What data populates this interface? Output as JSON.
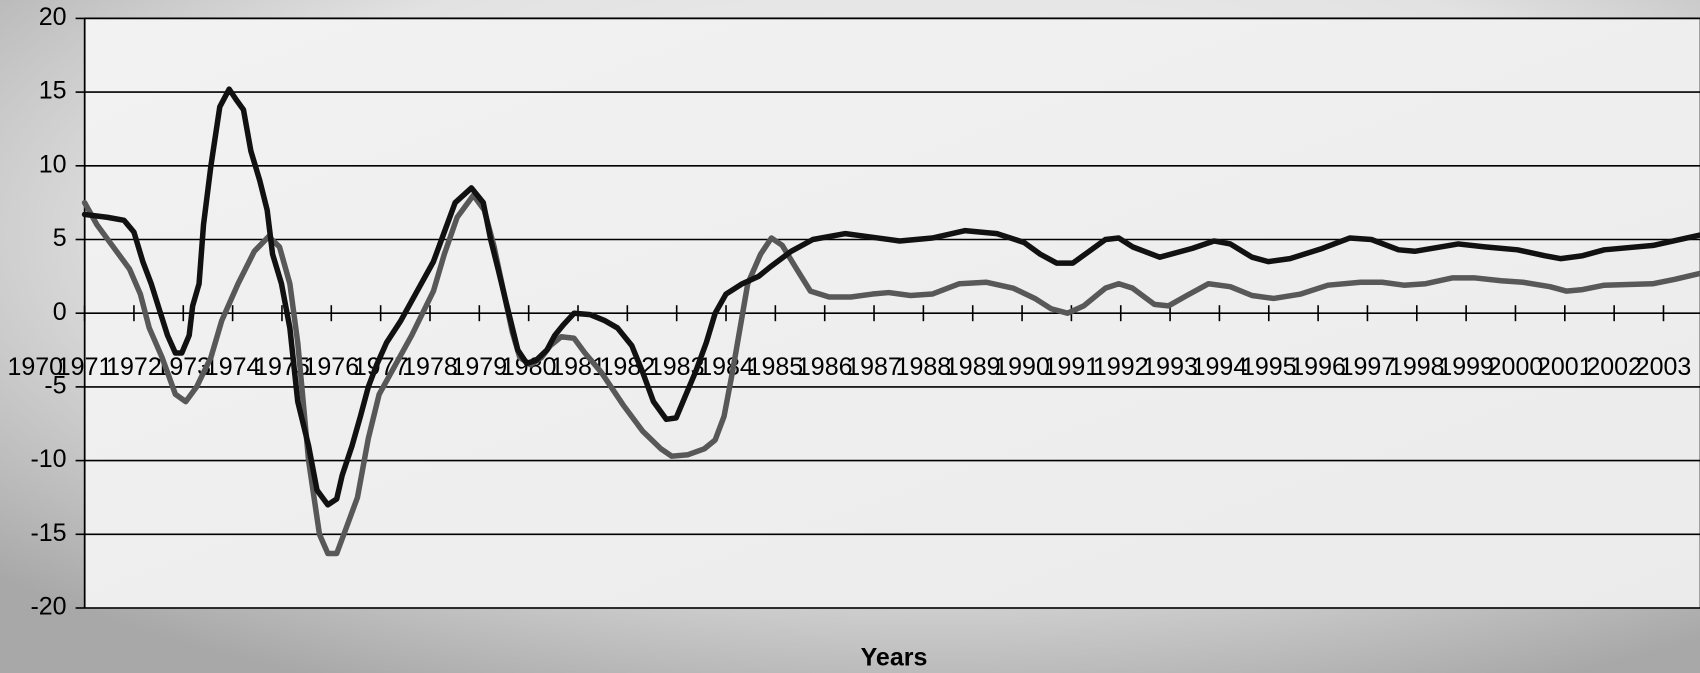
{
  "chart_data": {
    "type": "line",
    "x_label": "Years",
    "xlim": [
      1971,
      2003.74
    ],
    "xticks": [
      1970,
      1971,
      1972,
      1973,
      1974,
      1975,
      1976,
      1977,
      1978,
      1979,
      1980,
      1981,
      1982,
      1983,
      1984,
      1985,
      1986,
      1987,
      1988,
      1989,
      1990,
      1991,
      1992,
      1993,
      1994,
      1995,
      1996,
      1997,
      1998,
      1999,
      2000,
      2001,
      2002,
      2003
    ],
    "ylim": [
      -20,
      20
    ],
    "yticks": [
      -20,
      -15,
      -10,
      -5,
      0,
      5,
      10,
      15,
      20
    ],
    "grid": true,
    "series": [
      {
        "color": "#111111",
        "x": [
          1971.0,
          1971.47,
          1971.8,
          1972.0,
          1972.18,
          1972.35,
          1972.51,
          1972.68,
          1972.84,
          1972.97,
          1973.12,
          1973.19,
          1973.32,
          1973.41,
          1973.56,
          1973.74,
          1973.93,
          1974.07,
          1974.22,
          1974.37,
          1974.55,
          1974.7,
          1974.81,
          1974.99,
          1975.16,
          1975.32,
          1975.54,
          1975.71,
          1975.93,
          1976.11,
          1976.22,
          1976.42,
          1976.59,
          1976.75,
          1976.92,
          1977.12,
          1977.41,
          1977.74,
          1978.07,
          1978.29,
          1978.51,
          1978.84,
          1979.08,
          1979.23,
          1979.38,
          1979.56,
          1979.78,
          1979.96,
          1980.15,
          1980.37,
          1980.53,
          1980.7,
          1980.92,
          1981.25,
          1981.54,
          1981.8,
          1982.09,
          1982.31,
          1982.53,
          1982.79,
          1982.99,
          1983.19,
          1983.38,
          1983.6,
          1983.78,
          1984.0,
          1984.33,
          1984.66,
          1984.92,
          1985.32,
          1985.76,
          1986.42,
          1986.86,
          1987.52,
          1988.18,
          1988.84,
          1989.49,
          1990.04,
          1990.37,
          1990.7,
          1991.03,
          1991.36,
          1991.69,
          1991.96,
          1992.24,
          1992.79,
          1993.45,
          1993.89,
          1994.22,
          1994.66,
          1994.99,
          1995.43,
          1996.09,
          1996.64,
          1997.08,
          1997.63,
          1997.96,
          1998.84,
          1999.38,
          2000.04,
          2000.59,
          2000.92,
          2001.36,
          2001.8,
          2002.79,
          2003.74
        ],
        "values": [
          6.7,
          6.5,
          6.3,
          5.5,
          3.5,
          2,
          0.3,
          -1.5,
          -2.7,
          -2.7,
          -1.5,
          0.5,
          2,
          6,
          10,
          14,
          15.2,
          14.5,
          13.8,
          11,
          9,
          7,
          4,
          2,
          -1,
          -6,
          -9,
          -12,
          -13,
          -12.6,
          -11,
          -9,
          -7,
          -5,
          -3.5,
          -2,
          -0.5,
          1.5,
          3.5,
          5.5,
          7.5,
          8.5,
          7.5,
          5,
          3,
          0.5,
          -2.5,
          -3.4,
          -3.2,
          -2.5,
          -1.5,
          -0.8,
          0,
          -0.1,
          -0.5,
          -1,
          -2.2,
          -4,
          -6,
          -7.2,
          -7.1,
          -5.5,
          -4,
          -2,
          0,
          1.3,
          2,
          2.5,
          3.2,
          4.2,
          5,
          5.4,
          5.2,
          4.9,
          5.1,
          5.6,
          5.4,
          4.8,
          4,
          3.4,
          3.4,
          4.2,
          5,
          5.1,
          4.5,
          3.8,
          4.4,
          4.9,
          4.7,
          3.8,
          3.5,
          3.7,
          4.4,
          5.1,
          5,
          4.3,
          4.2,
          4.7,
          4.5,
          4.3,
          3.9,
          3.7,
          3.9,
          4.3,
          4.6,
          5.3
        ]
      },
      {
        "color": "#585858",
        "x": [
          1971.0,
          1971.25,
          1971.58,
          1971.91,
          1972.13,
          1972.31,
          1972.57,
          1972.84,
          1973.05,
          1973.27,
          1973.56,
          1973.78,
          1974.11,
          1974.44,
          1974.73,
          1974.95,
          1975.16,
          1975.32,
          1975.54,
          1975.76,
          1975.93,
          1976.11,
          1976.31,
          1976.53,
          1976.75,
          1976.97,
          1977.3,
          1977.63,
          1978.07,
          1978.29,
          1978.55,
          1978.88,
          1979.1,
          1979.3,
          1979.49,
          1979.67,
          1979.82,
          1980.04,
          1980.26,
          1980.44,
          1980.66,
          1980.92,
          1981.14,
          1981.47,
          1981.91,
          1982.31,
          1982.68,
          1982.9,
          1983.23,
          1983.56,
          1983.78,
          1983.96,
          1984.13,
          1984.44,
          1984.7,
          1984.92,
          1985.14,
          1985.43,
          1985.71,
          1986.09,
          1986.53,
          1986.97,
          1987.3,
          1987.74,
          1988.18,
          1988.73,
          1989.27,
          1989.82,
          1990.26,
          1990.59,
          1990.92,
          1991.25,
          1991.69,
          1991.96,
          1992.24,
          1992.68,
          1992.97,
          1993.34,
          1993.78,
          1994.22,
          1994.66,
          1995.1,
          1995.65,
          1996.2,
          1996.86,
          1997.3,
          1997.74,
          1998.18,
          1998.73,
          1999.16,
          1999.71,
          2000.15,
          2000.7,
          2001.03,
          2001.36,
          2001.8,
          2002.79,
          2003.23,
          2003.74
        ],
        "values": [
          7.5,
          6,
          4.5,
          3,
          1.3,
          -1,
          -3,
          -5.5,
          -6,
          -5,
          -3,
          -0.5,
          2,
          4.2,
          5.2,
          4.5,
          2,
          -2,
          -10,
          -15,
          -16.3,
          -16.3,
          -14.5,
          -12.5,
          -8.5,
          -5.5,
          -3.5,
          -1.5,
          1.5,
          4,
          6.5,
          8,
          7,
          4.5,
          1.5,
          -1.3,
          -3,
          -3.5,
          -3,
          -2.2,
          -1.6,
          -1.7,
          -2.7,
          -4,
          -6.2,
          -8,
          -9.2,
          -9.7,
          -9.6,
          -9.2,
          -8.6,
          -7,
          -4,
          2,
          4,
          5.1,
          4.6,
          3,
          1.5,
          1.1,
          1.1,
          1.3,
          1.4,
          1.2,
          1.3,
          2,
          2.1,
          1.7,
          1,
          0.3,
          0,
          0.5,
          1.7,
          2,
          1.7,
          0.6,
          0.5,
          1.2,
          2,
          1.8,
          1.2,
          1,
          1.3,
          1.9,
          2.1,
          2.1,
          1.9,
          2,
          2.4,
          2.4,
          2.2,
          2.1,
          1.8,
          1.5,
          1.6,
          1.9,
          2,
          2.3,
          2.7
        ]
      }
    ]
  }
}
